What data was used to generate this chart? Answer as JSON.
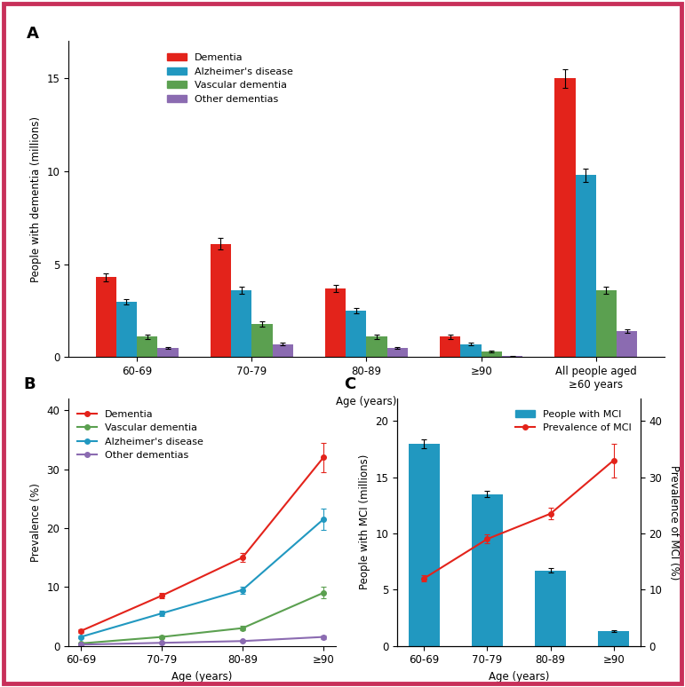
{
  "panel_A": {
    "categories": [
      "60-69",
      "70-79",
      "80-89",
      "≥90",
      "All people aged\n≥60 years"
    ],
    "dementia": [
      4.3,
      6.1,
      3.7,
      1.1,
      15.0
    ],
    "dementia_err": [
      0.2,
      0.3,
      0.2,
      0.1,
      0.5
    ],
    "alzheimer": [
      3.0,
      3.6,
      2.5,
      0.7,
      9.8
    ],
    "alzheimer_err": [
      0.15,
      0.2,
      0.15,
      0.08,
      0.35
    ],
    "vascular": [
      1.1,
      1.8,
      1.1,
      0.3,
      3.6
    ],
    "vascular_err": [
      0.1,
      0.15,
      0.1,
      0.05,
      0.2
    ],
    "other": [
      0.5,
      0.7,
      0.5,
      0.05,
      1.4
    ],
    "other_err": [
      0.05,
      0.08,
      0.06,
      0.02,
      0.1
    ],
    "ylim": [
      0,
      17
    ],
    "yticks": [
      0,
      5,
      10,
      15
    ],
    "ylabel": "People with dementia (millions)",
    "xlabel": "Age (years)",
    "colors": {
      "dementia": "#E3231B",
      "alzheimer": "#2198C0",
      "vascular": "#5BA050",
      "other": "#8B6BB1"
    },
    "legend_labels": [
      "Dementia",
      "Alzheimer's disease",
      "Vascular dementia",
      "Other dementias"
    ]
  },
  "panel_B": {
    "age_labels": [
      "60-69",
      "70-79",
      "80-89",
      "≥90"
    ],
    "dementia": [
      2.5,
      8.5,
      15.0,
      32.0
    ],
    "dementia_err": [
      0.3,
      0.5,
      0.8,
      2.5
    ],
    "alzheimer": [
      1.5,
      5.5,
      9.5,
      21.5
    ],
    "alzheimer_err": [
      0.2,
      0.4,
      0.6,
      1.8
    ],
    "vascular": [
      0.4,
      1.5,
      3.0,
      9.0
    ],
    "vascular_err": [
      0.1,
      0.2,
      0.4,
      1.0
    ],
    "other": [
      0.2,
      0.5,
      0.8,
      1.5
    ],
    "other_err": [
      0.05,
      0.1,
      0.15,
      0.3
    ],
    "ylim": [
      0,
      42
    ],
    "yticks": [
      0,
      10,
      20,
      30,
      40
    ],
    "ylabel": "Prevalence (%)",
    "xlabel": "Age (years)",
    "colors": {
      "dementia": "#E3231B",
      "alzheimer": "#2198C0",
      "vascular": "#5BA050",
      "other": "#8B6BB1"
    },
    "legend_labels": [
      "Dementia",
      "Vascular dementia",
      "Alzheimer's disease",
      "Other dementias"
    ]
  },
  "panel_C": {
    "age_labels": [
      "60-69",
      "70-79",
      "80-89",
      "≥90"
    ],
    "mci_bars": [
      18.0,
      13.5,
      6.7,
      1.3
    ],
    "mci_bars_err": [
      0.4,
      0.3,
      0.2,
      0.1
    ],
    "mci_prev": [
      12.0,
      19.0,
      23.5,
      33.0
    ],
    "mci_prev_err": [
      0.5,
      0.8,
      1.0,
      3.0
    ],
    "ylim_left": [
      0,
      22
    ],
    "yticks_left": [
      0,
      5,
      10,
      15,
      20
    ],
    "ylim_right": [
      0,
      44
    ],
    "yticks_right": [
      0,
      10,
      20,
      30,
      40
    ],
    "ylabel_left": "People with MCI (millions)",
    "ylabel_right": "Prevalence of MCI (%)",
    "xlabel": "Age (years)",
    "bar_color": "#2198C0",
    "line_color": "#E3231B",
    "legend_labels": [
      "People with MCI",
      "Prevalence of MCI"
    ]
  },
  "border_color": "#C8305A",
  "background": "#FFFFFF"
}
